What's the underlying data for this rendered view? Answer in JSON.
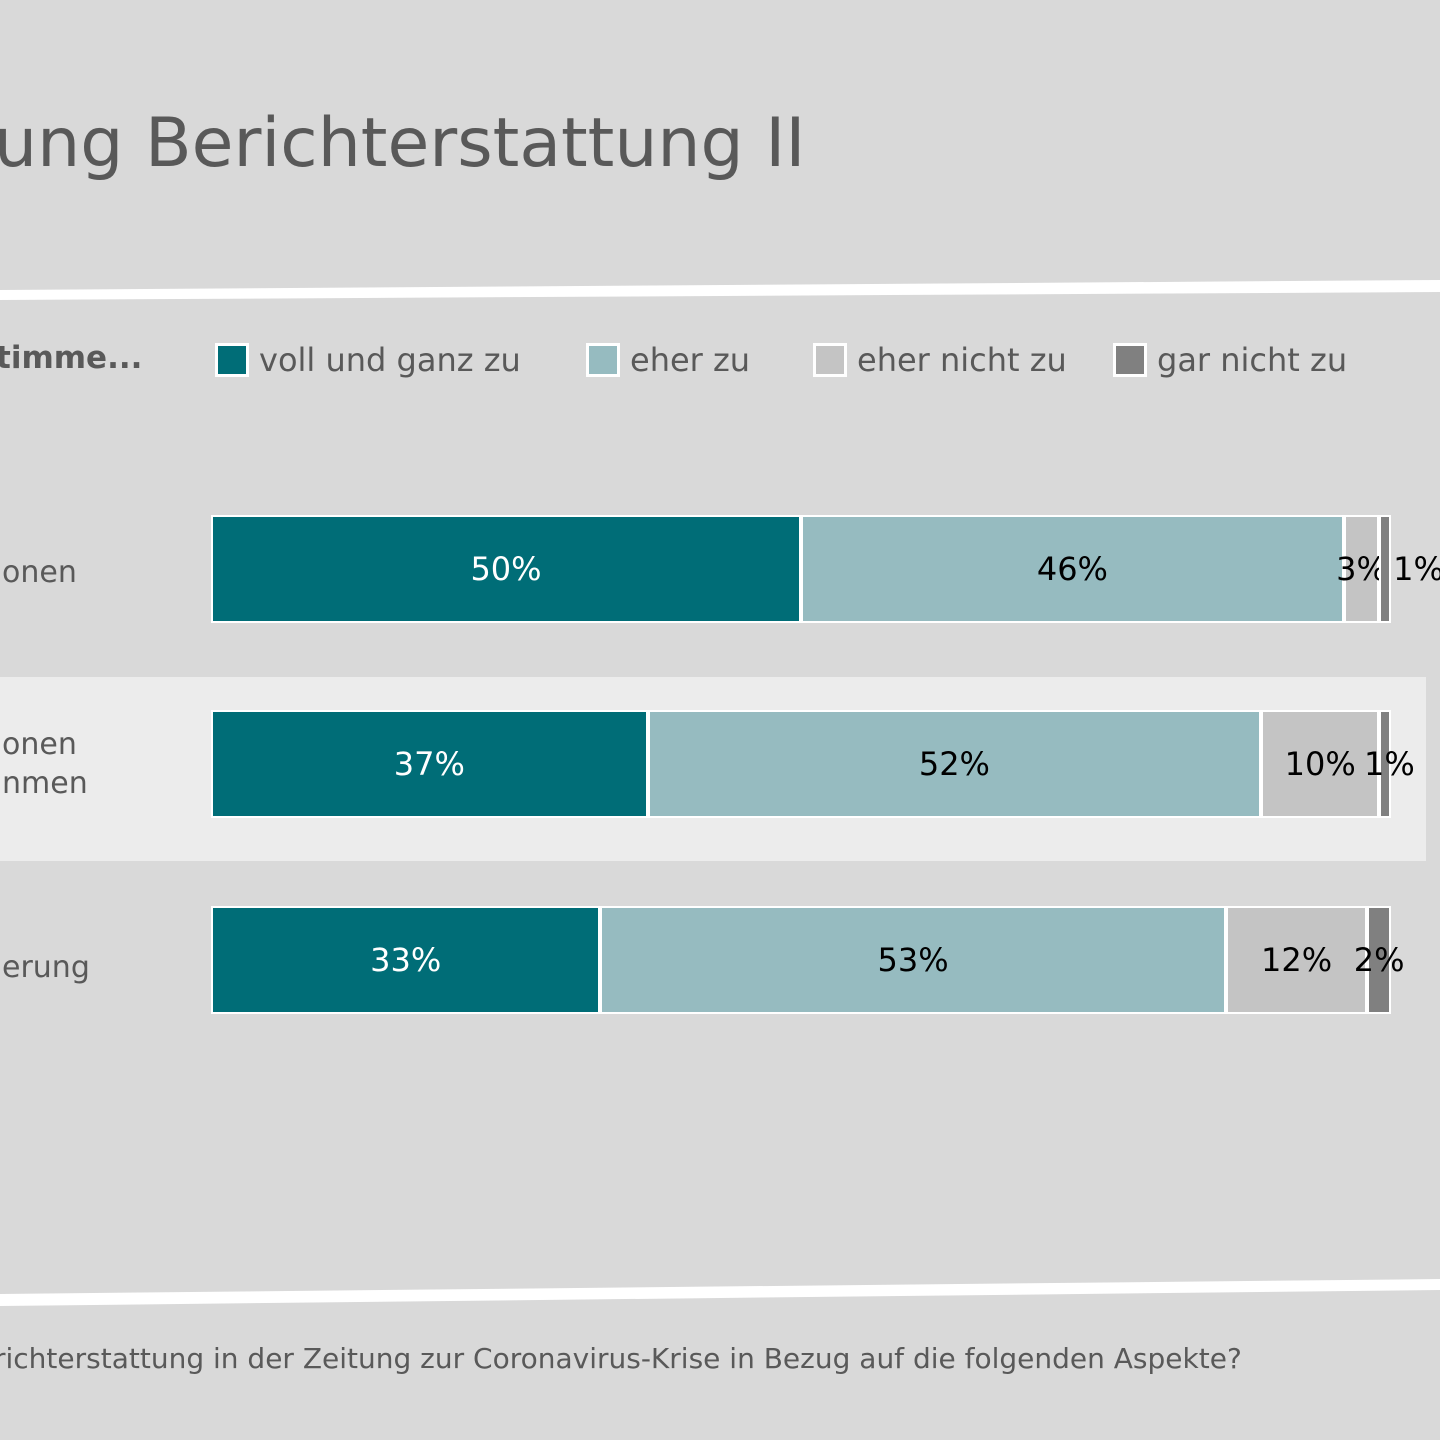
{
  "header": {
    "title": "ung Berichterstattung II"
  },
  "legend": {
    "title": "timme...",
    "items": [
      {
        "label": "voll und ganz zu",
        "color": "#006d77"
      },
      {
        "label": "eher zu",
        "color": "#96bbc0"
      },
      {
        "label": "eher nicht zu",
        "color": "#c4c4c4"
      },
      {
        "label": "gar nicht zu",
        "color": "#808080"
      }
    ]
  },
  "chart_data": {
    "type": "bar",
    "orientation": "horizontal-stacked-100",
    "categories": [
      "onen",
      "onen\nnmen",
      "erung"
    ],
    "series": [
      {
        "name": "voll und ganz zu",
        "values": [
          50,
          37,
          33
        ],
        "color": "#006d77",
        "label_color": "#ffffff"
      },
      {
        "name": "eher zu",
        "values": [
          46,
          52,
          53
        ],
        "color": "#96bbc0",
        "label_color": "#000000"
      },
      {
        "name": "eher nicht zu",
        "values": [
          3,
          10,
          12
        ],
        "color": "#c4c4c4",
        "label_color": "#000000"
      },
      {
        "name": "gar nicht zu",
        "values": [
          1,
          1,
          2
        ],
        "color": "#808080",
        "label_color": "#000000"
      }
    ],
    "value_suffix": "%",
    "xlim": [
      0,
      100
    ]
  },
  "footer": {
    "question": "richterstattung in der Zeitung zur Coronavirus-Krise in Bezug auf die folgenden Aspekte?"
  }
}
